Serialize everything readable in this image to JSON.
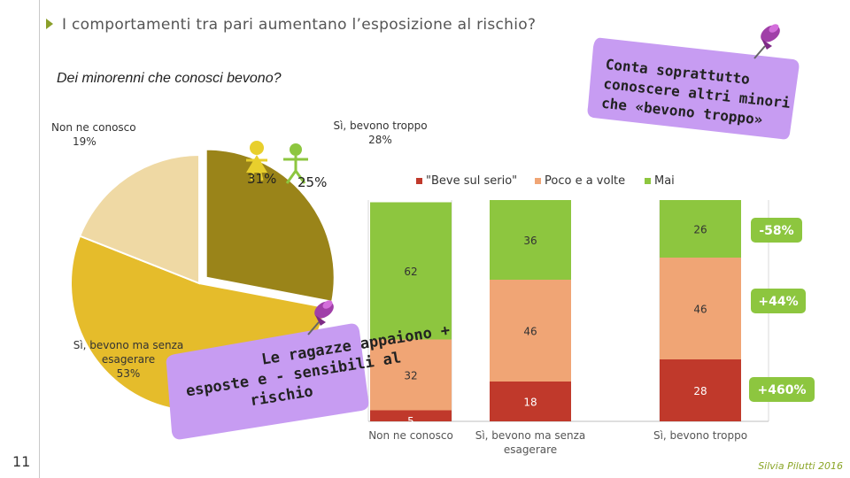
{
  "slide": {
    "title": "I comportamenti tra pari aumentano l’esposizione al rischio?",
    "page_number": "11",
    "credit": "Silvia Pilutti 2016"
  },
  "notes": {
    "top_right": [
      "Conta soprattutto",
      "conoscere altri minori",
      "che «bevono troppo»"
    ],
    "bottom_left": [
      "Le ragazze appaiono +",
      "esposte e - sensibili al",
      "rischio"
    ]
  },
  "colors": {
    "green": "#8dc63f",
    "orange": "#f0a575",
    "red": "#c0392b",
    "olive": "#9a8419",
    "yellow": "#e5bc2b",
    "beige": "#efd9a4",
    "note": "#c79cf2",
    "girl": "#e8cf2d",
    "boy": "#8dc63f"
  },
  "pie": {
    "title": "Dei minorenni che conosci bevono?",
    "slices": [
      {
        "label": "Sì, bevono troppo",
        "value": 28,
        "pct": "28%"
      },
      {
        "label": "Sì, bevono ma senza esagerare",
        "value": 53,
        "pct": "53%"
      },
      {
        "label": "Non ne conosco",
        "value": 19,
        "pct": "19%"
      }
    ],
    "girls_pct": "31%",
    "boys_pct": "25%"
  },
  "chart_data": [
    {
      "type": "pie",
      "title": "Dei minorenni che conosci bevono?",
      "categories": [
        "Sì, bevono troppo",
        "Sì, bevono ma senza esagerare",
        "Non ne conosco"
      ],
      "values": [
        28,
        53,
        19
      ]
    },
    {
      "type": "bar",
      "stacked": true,
      "categories": [
        "Non ne conosco",
        "Sì, bevono ma senza esagerare",
        "Sì, bevono troppo"
      ],
      "series": [
        {
          "name": "\"Beve sul serio\"",
          "values": [
            5,
            18,
            28
          ]
        },
        {
          "name": "Poco e a volte",
          "values": [
            32,
            46,
            46
          ]
        },
        {
          "name": "Mai",
          "values": [
            62,
            36,
            26
          ]
        }
      ],
      "changes": [
        "-58%",
        "+44%",
        "+460%"
      ],
      "ylim": [
        0,
        100
      ],
      "grid": true,
      "legend": "top"
    }
  ]
}
